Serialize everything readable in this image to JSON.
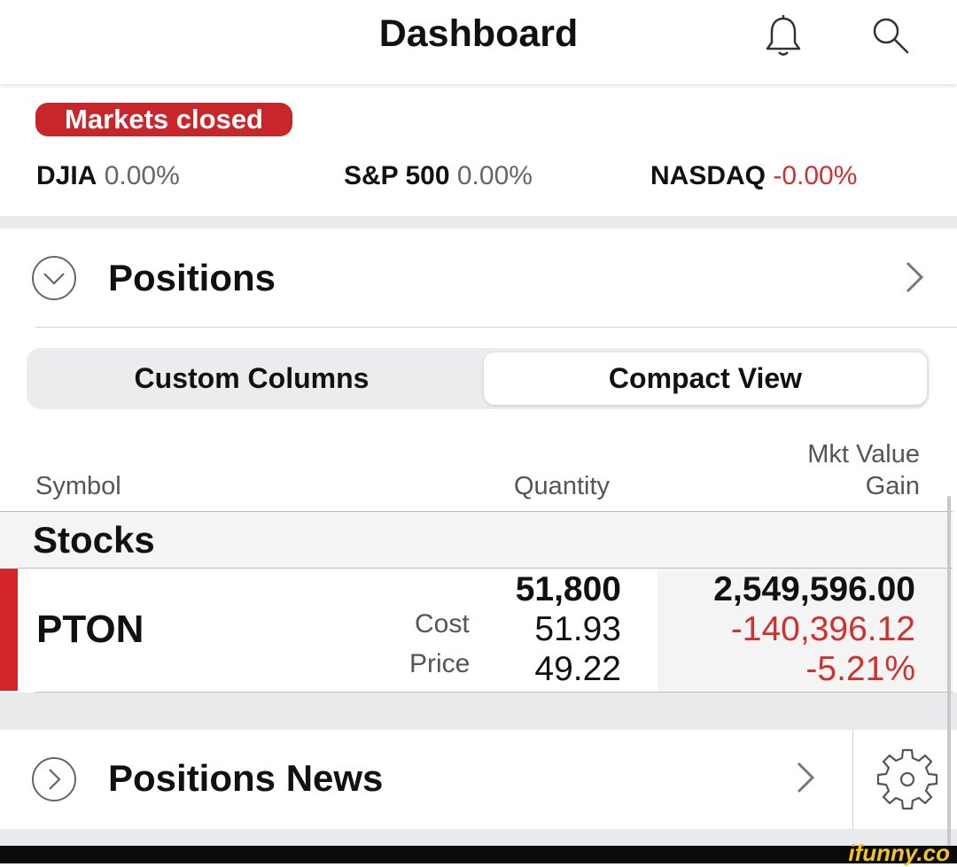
{
  "header": {
    "title": "Dashboard",
    "bell_icon": "bell-icon",
    "search_icon": "search-icon"
  },
  "market": {
    "status": "Markets closed",
    "status_color": "#c8262b",
    "indices": [
      {
        "name": "DJIA",
        "change": "0.00%"
      },
      {
        "name": "S&P 500",
        "change": "0.00%"
      },
      {
        "name": "NASDAQ",
        "change": "-0.00%"
      }
    ]
  },
  "positions": {
    "title": "Positions",
    "segments": {
      "left": "Custom Columns",
      "right": "Compact View",
      "selected": "Compact View"
    },
    "columns": {
      "symbol": "Symbol",
      "quantity": "Quantity",
      "mkt_value": "Mkt Value",
      "gain": "Gain"
    },
    "section": "Stocks",
    "rows": [
      {
        "symbol": "PTON",
        "quantity": "51,800",
        "cost_label": "Cost",
        "cost": "51.93",
        "price_label": "Price",
        "price": "49.22",
        "mkt_value": "2,549,596.00",
        "gain": "-140,396.12",
        "gain_pct": "-5.21%"
      }
    ]
  },
  "news": {
    "title": "Positions News",
    "settings_icon": "gear-icon"
  },
  "colors": {
    "negative": "#d0312d",
    "accent_bar": "#d2262a"
  },
  "watermark": "ifunny.co"
}
